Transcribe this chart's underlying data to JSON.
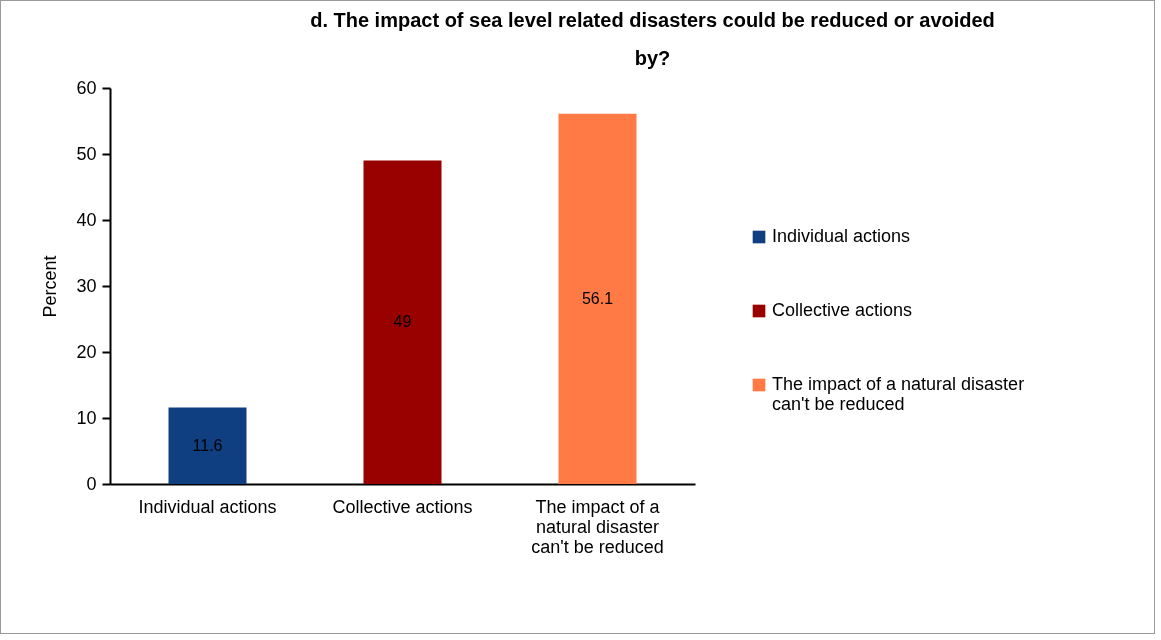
{
  "chart_data": {
    "type": "bar",
    "title": "d. The impact of sea level related disasters could be reduced or avoided by?",
    "ylabel": "Percent",
    "categories": [
      "Individual actions",
      "Collective actions",
      "The impact of a natural disaster can't be reduced"
    ],
    "series": [
      {
        "name": "Individual actions",
        "color": "#0f3f80",
        "values": [
          11.6,
          null,
          null
        ]
      },
      {
        "name": "Collective actions",
        "color": "#990000",
        "values": [
          null,
          49,
          null
        ]
      },
      {
        "name": "The impact of a natural disaster can't be reduced",
        "color": "#ff7a45",
        "values": [
          null,
          null,
          56.1
        ]
      }
    ],
    "ylim": [
      0,
      60
    ],
    "yticks": [
      0,
      10,
      20,
      30,
      40,
      50,
      60
    ],
    "data_labels": true,
    "legend": "right"
  }
}
